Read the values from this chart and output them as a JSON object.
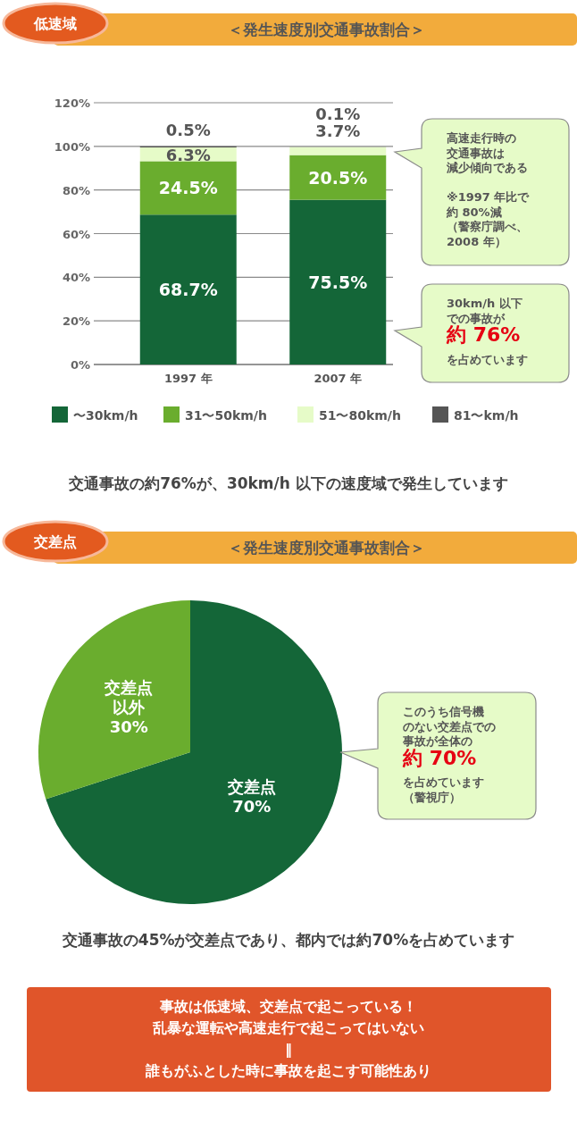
{
  "chart_data": [
    {
      "type": "bar",
      "stacked": true,
      "title": "＜発生速度別交通事故割合＞",
      "categories": [
        "1997 年",
        "2007 年"
      ],
      "series": [
        {
          "name": "〜30km/h",
          "color": "#146638",
          "values": [
            68.7,
            75.5
          ],
          "value_labels": [
            "68.7%",
            "75.5%"
          ]
        },
        {
          "name": "31〜50km/h",
          "color": "#6aad2e",
          "values": [
            24.5,
            20.5
          ],
          "value_labels": [
            "24.5%",
            "20.5%"
          ]
        },
        {
          "name": "51〜80km/h",
          "color": "#e6fbc8",
          "values": [
            6.3,
            3.7
          ],
          "value_labels": [
            "6.3%",
            "3.7%"
          ]
        },
        {
          "name": "81〜km/h",
          "color": "#555555",
          "values": [
            0.5,
            0.1
          ],
          "value_labels": [
            "0.5%",
            "0.1%"
          ]
        }
      ],
      "ylim": [
        0,
        120
      ],
      "yticks": [
        {
          "value": 0,
          "label": "0%"
        },
        {
          "value": 20,
          "label": "20%"
        },
        {
          "value": 40,
          "label": "40%"
        },
        {
          "value": 60,
          "label": "60%"
        },
        {
          "value": 80,
          "label": "80%"
        },
        {
          "value": 100,
          "label": "100%"
        },
        {
          "value": 120,
          "label": "120%"
        }
      ],
      "grid": "y",
      "legend": "bottom",
      "annotations": [
        "低速域",
        "高速走行時の",
        "交通事故は",
        "減少傾向である",
        "※1997 年比で",
        "約 80%減",
        "（警察庁調べ、",
        "2008 年）",
        "30km/h 以下",
        "での事故が",
        "約 76%",
        "を占めています",
        "交通事故の約76%が、30km/h 以下の速度域で発生しています"
      ]
    },
    {
      "type": "pie",
      "title": "＜発生速度別交通事故割合＞",
      "categories": [
        "交差点",
        "交差点以外"
      ],
      "values": [
        70,
        30
      ],
      "value_labels": [
        "70%",
        "30%"
      ],
      "colors": [
        "#146638",
        "#6aad2e"
      ],
      "annotations": [
        "交差点",
        "このうち信号機",
        "のない交差点での",
        "事故が全体の",
        "約 70%",
        "を占めています",
        "（警視庁）",
        "交通事故の45%が交差点であり、都内では約70%を占めています",
        "事故は低速域、交差点で起こっている！",
        "乱暴な運転や高速走行で起こってはいない",
        "‖",
        "誰もがふとした時に事故を起こす可能性あり"
      ]
    }
  ]
}
